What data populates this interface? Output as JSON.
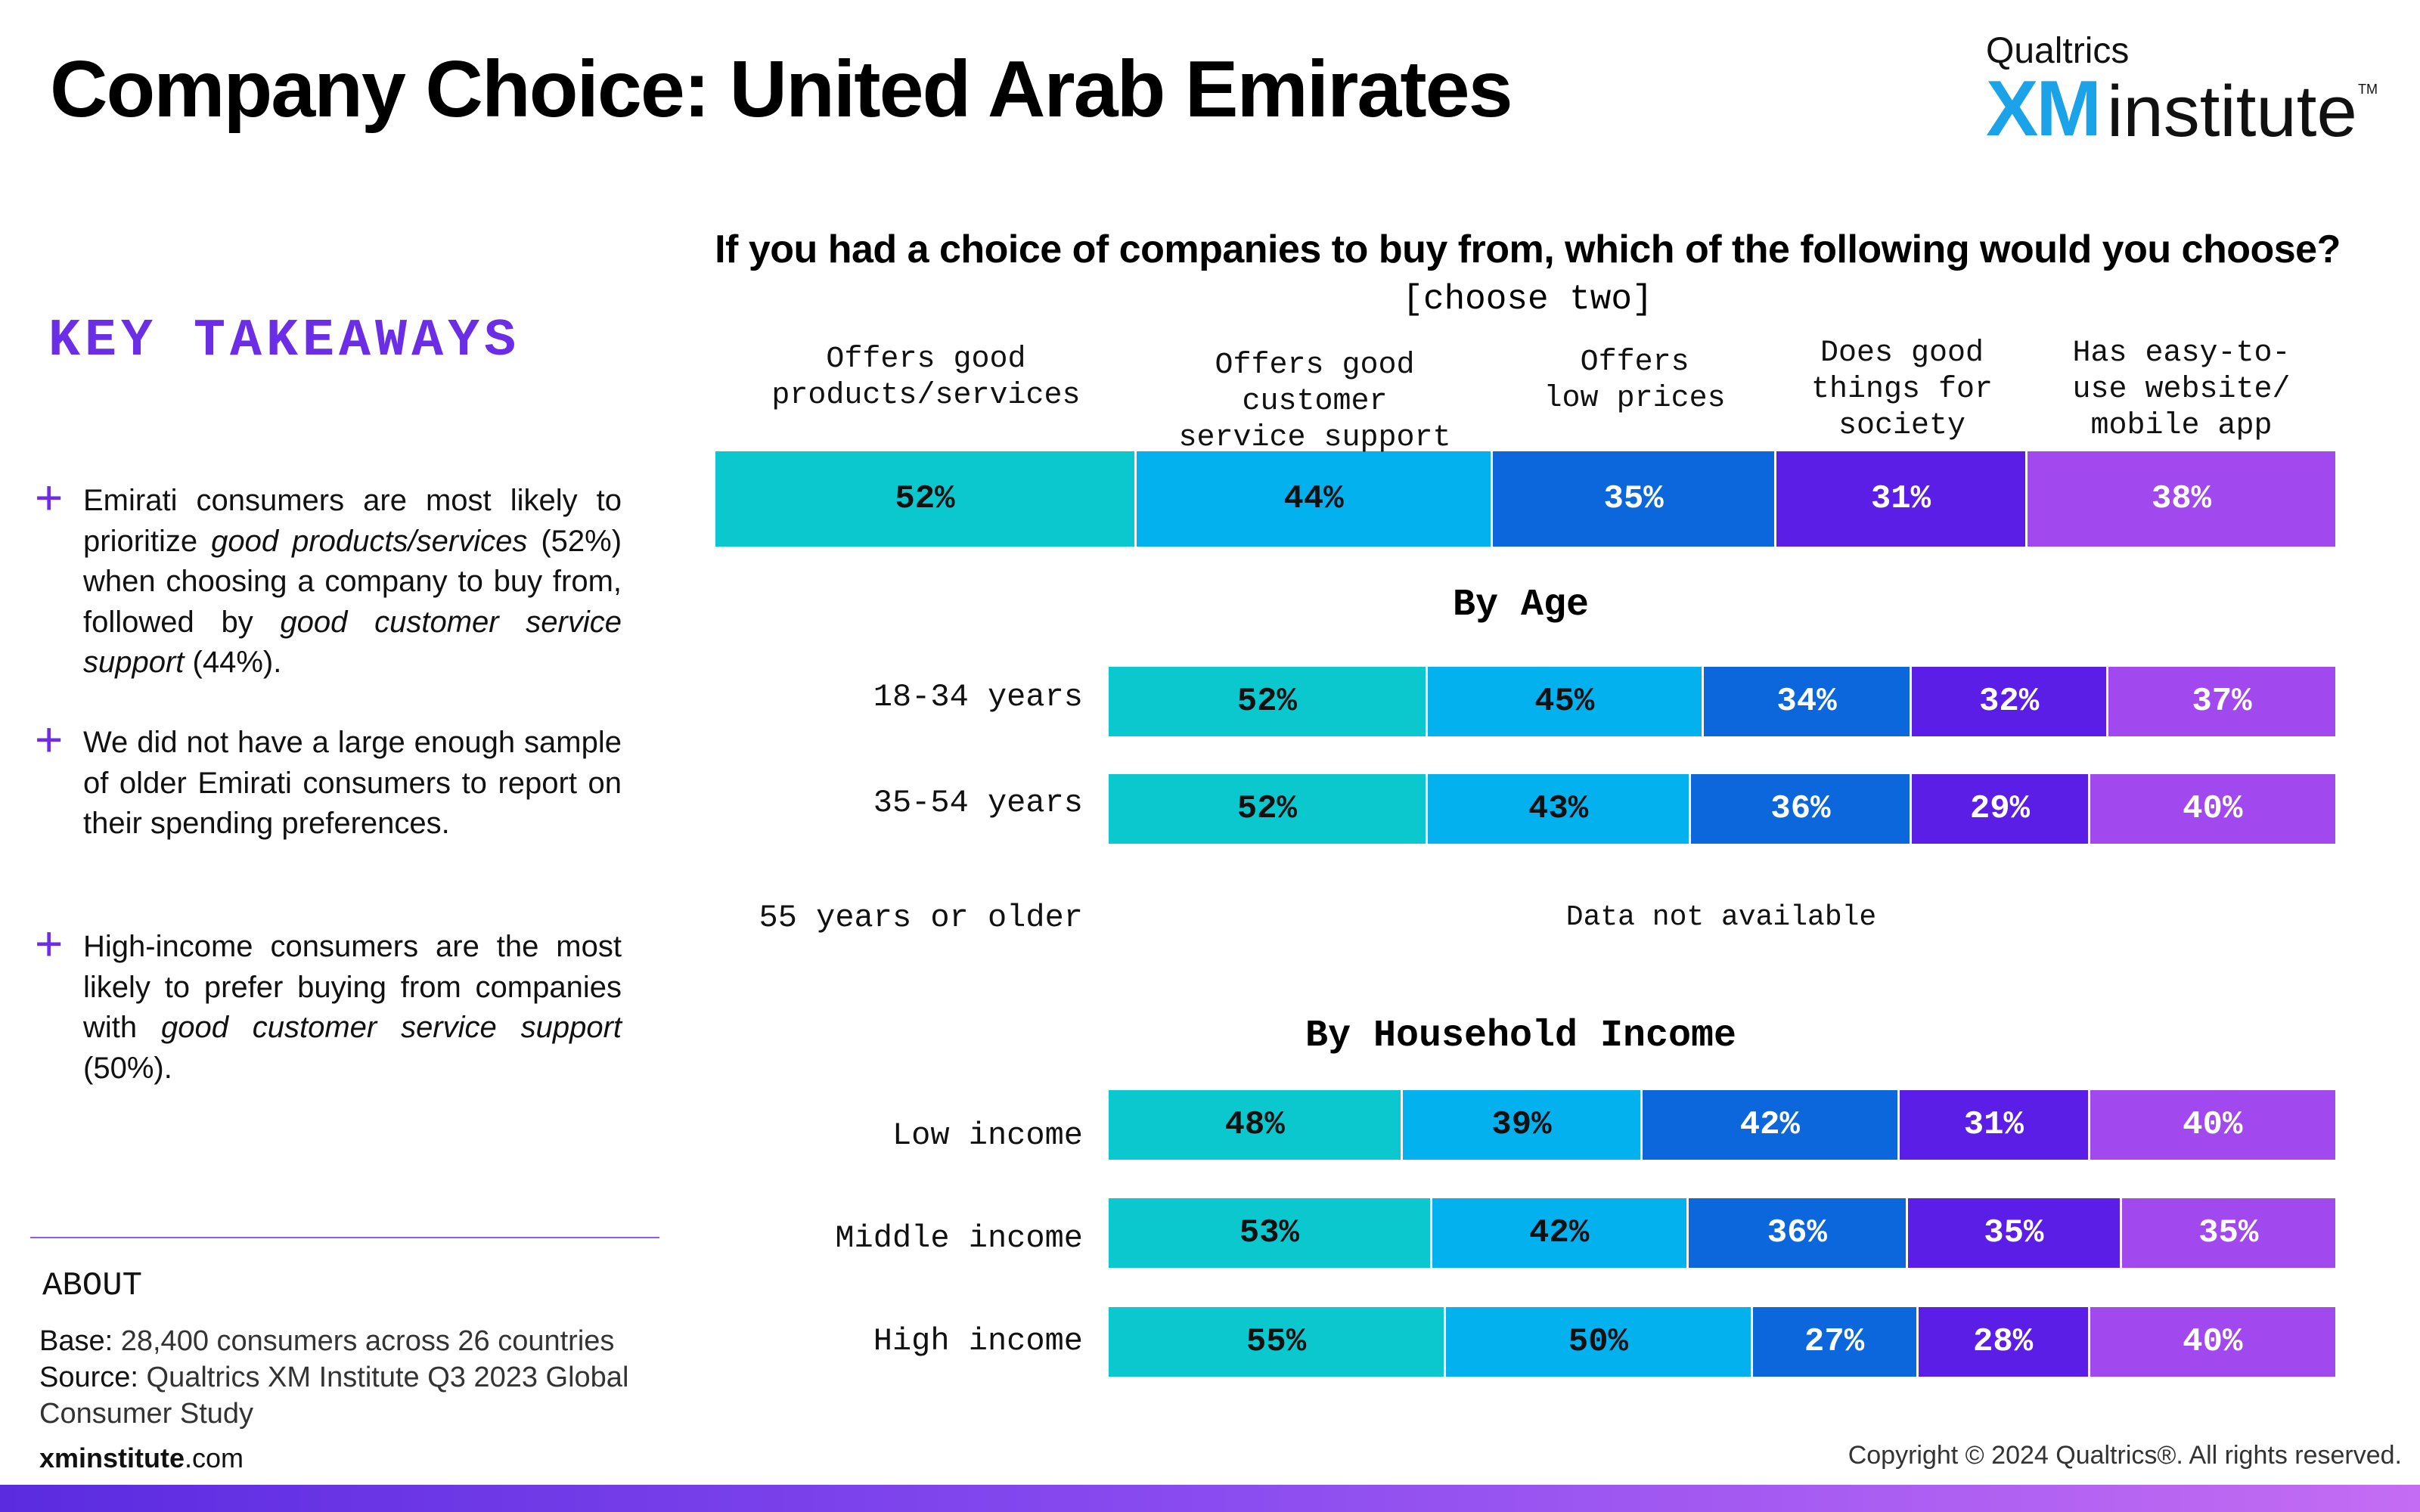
{
  "title": "Company Choice: United Arab Emirates",
  "logo": {
    "top": "Qualtrics",
    "xm": "XM",
    "institute": "institute",
    "tm": "TM"
  },
  "key_takeaways": {
    "heading": "KEY TAKEAWAYS",
    "items": [
      [
        "Emirati consumers are most likely to prioritize ",
        "good products/services",
        " (52%) when choosing a company to buy from, followed by ",
        "good customer service support",
        " (44%)."
      ],
      [
        "We did not have a large enough sample of older Emirati consumers to report on their spending preferences."
      ],
      [
        "High-income consumers are the most likely to prefer buying from companies with ",
        "good customer service support",
        " (50%)."
      ]
    ]
  },
  "about": {
    "label": "ABOUT",
    "base_label": "Base:",
    "base_text": " 28,400 consumers across 26 countries",
    "source_label": "Source:",
    "source_text": " Qualtrics XM Institute Q3 2023 Global Consumer Study"
  },
  "footer": {
    "site_bold": "xminstitute",
    "site_rest": ".com",
    "copyright": "Copyright © 2024 Qualtrics®. All rights reserved."
  },
  "colors": [
    "#0bc8cf",
    "#03b1ee",
    "#0c67dd",
    "#5a1ee6",
    "#a248ef"
  ],
  "text_colors": [
    "#111111",
    "#111111",
    "#ffffff",
    "#ffffff",
    "#ffffff"
  ],
  "chart_data": {
    "type": "bar",
    "stacked": true,
    "title": "If you had a choice of companies to buy from, which of the following would you choose?",
    "subtitle": "[choose two]",
    "categories": [
      "Offers good\nproducts/services",
      "Offers good customer\nservice support",
      "Offers\nlow prices",
      "Does good\nthings for\nsociety",
      "Has easy-to-\nuse website/\nmobile app"
    ],
    "overall": [
      52,
      44,
      35,
      31,
      38
    ],
    "sections": [
      {
        "heading": "By Age",
        "rows": [
          {
            "label": "18-34 years",
            "values": [
              52,
              45,
              34,
              32,
              37
            ]
          },
          {
            "label": "35-54 years",
            "values": [
              52,
              43,
              36,
              29,
              40
            ]
          },
          {
            "label": "55 years or older",
            "values": null,
            "note": "Data not available"
          }
        ]
      },
      {
        "heading": "By Household Income",
        "rows": [
          {
            "label": "Low income",
            "values": [
              48,
              39,
              42,
              31,
              40
            ]
          },
          {
            "label": "Middle income",
            "values": [
              53,
              42,
              36,
              35,
              35
            ]
          },
          {
            "label": "High income",
            "values": [
              55,
              50,
              27,
              28,
              40
            ]
          }
        ]
      }
    ]
  }
}
